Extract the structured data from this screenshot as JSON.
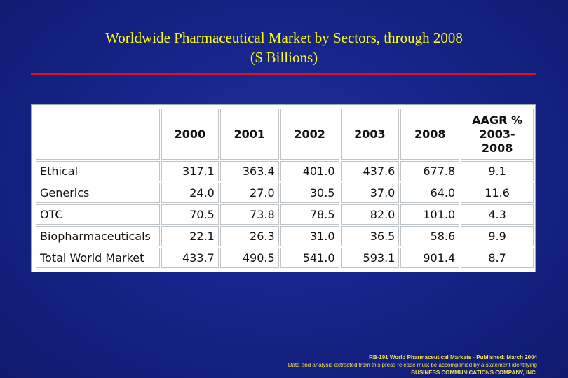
{
  "title": {
    "line1": "Worldwide Pharmaceutical  Market by Sectors, through 2008",
    "line2": "($ Billions)"
  },
  "colors": {
    "background": "#17248a",
    "title": "#ffff00",
    "rule": "#e0101c",
    "footer": "#f2e24a"
  },
  "table": {
    "headers": [
      "",
      "2000",
      "2001",
      "2002",
      "2003",
      "2008",
      "AAGR % 2003-2008"
    ],
    "rows": [
      {
        "sector": "Ethical",
        "v2000": "317.1",
        "v2001": "363.4",
        "v2002": "401.0",
        "v2003": "437.6",
        "v2008": "677.8",
        "aagr": "9.1"
      },
      {
        "sector": "Generics",
        "v2000": "24.0",
        "v2001": "27.0",
        "v2002": "30.5",
        "v2003": "37.0",
        "v2008": "64.0",
        "aagr": "11.6"
      },
      {
        "sector": "OTC",
        "v2000": "70.5",
        "v2001": "73.8",
        "v2002": "78.5",
        "v2003": "82.0",
        "v2008": "101.0",
        "aagr": "4.3"
      },
      {
        "sector": "Biopharmaceuticals",
        "v2000": "22.1",
        "v2001": "26.3",
        "v2002": "31.0",
        "v2003": "36.5",
        "v2008": "58.6",
        "aagr": "9.9"
      },
      {
        "sector": "Total World Market",
        "v2000": "433.7",
        "v2001": "490.5",
        "v2002": "541.0",
        "v2003": "593.1",
        "v2008": "901.4",
        "aagr": "8.7"
      }
    ]
  },
  "footer": {
    "line1": "RB-191 World Pharmaceutical Markets - Published: March 2004",
    "line2": "Data and analysis extracted from this press release must be accompanied by a statement identifying",
    "line3": "BUSINESS COMMUNICATIONS COMPANY, INC."
  }
}
